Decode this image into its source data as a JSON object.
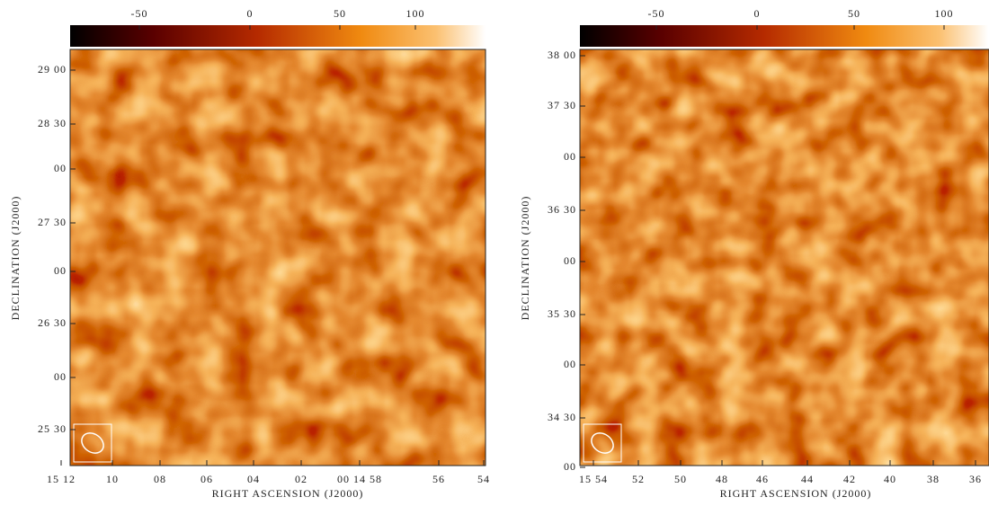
{
  "panels": [
    {
      "colorbar_ticks": [
        -50,
        0,
        50,
        100
      ],
      "y_ticks": [
        "29 00",
        "28 30",
        "00",
        "27 30",
        "00",
        "26 30",
        "00",
        "25 30"
      ],
      "x_ticks": [
        "15 12",
        "10",
        "08",
        "06",
        "04",
        "02",
        "00 14 58",
        "56",
        "54"
      ],
      "y_label": "DECLINATION (J2000)",
      "x_label": "RIGHT ASCENSION (J2000)"
    },
    {
      "colorbar_ticks": [
        -50,
        0,
        50,
        100
      ],
      "y_ticks": [
        "38 00",
        "37 30",
        "00",
        "36 30",
        "00",
        "35 30",
        "00",
        "34 30",
        "00"
      ],
      "x_ticks": [
        "15 54",
        "52",
        "50",
        "48",
        "46",
        "44",
        "42",
        "40",
        "38",
        "36"
      ],
      "y_label": "DECLINATION (J2000)",
      "x_label": "RIGHT ASCENSION (J2000)"
    }
  ]
}
